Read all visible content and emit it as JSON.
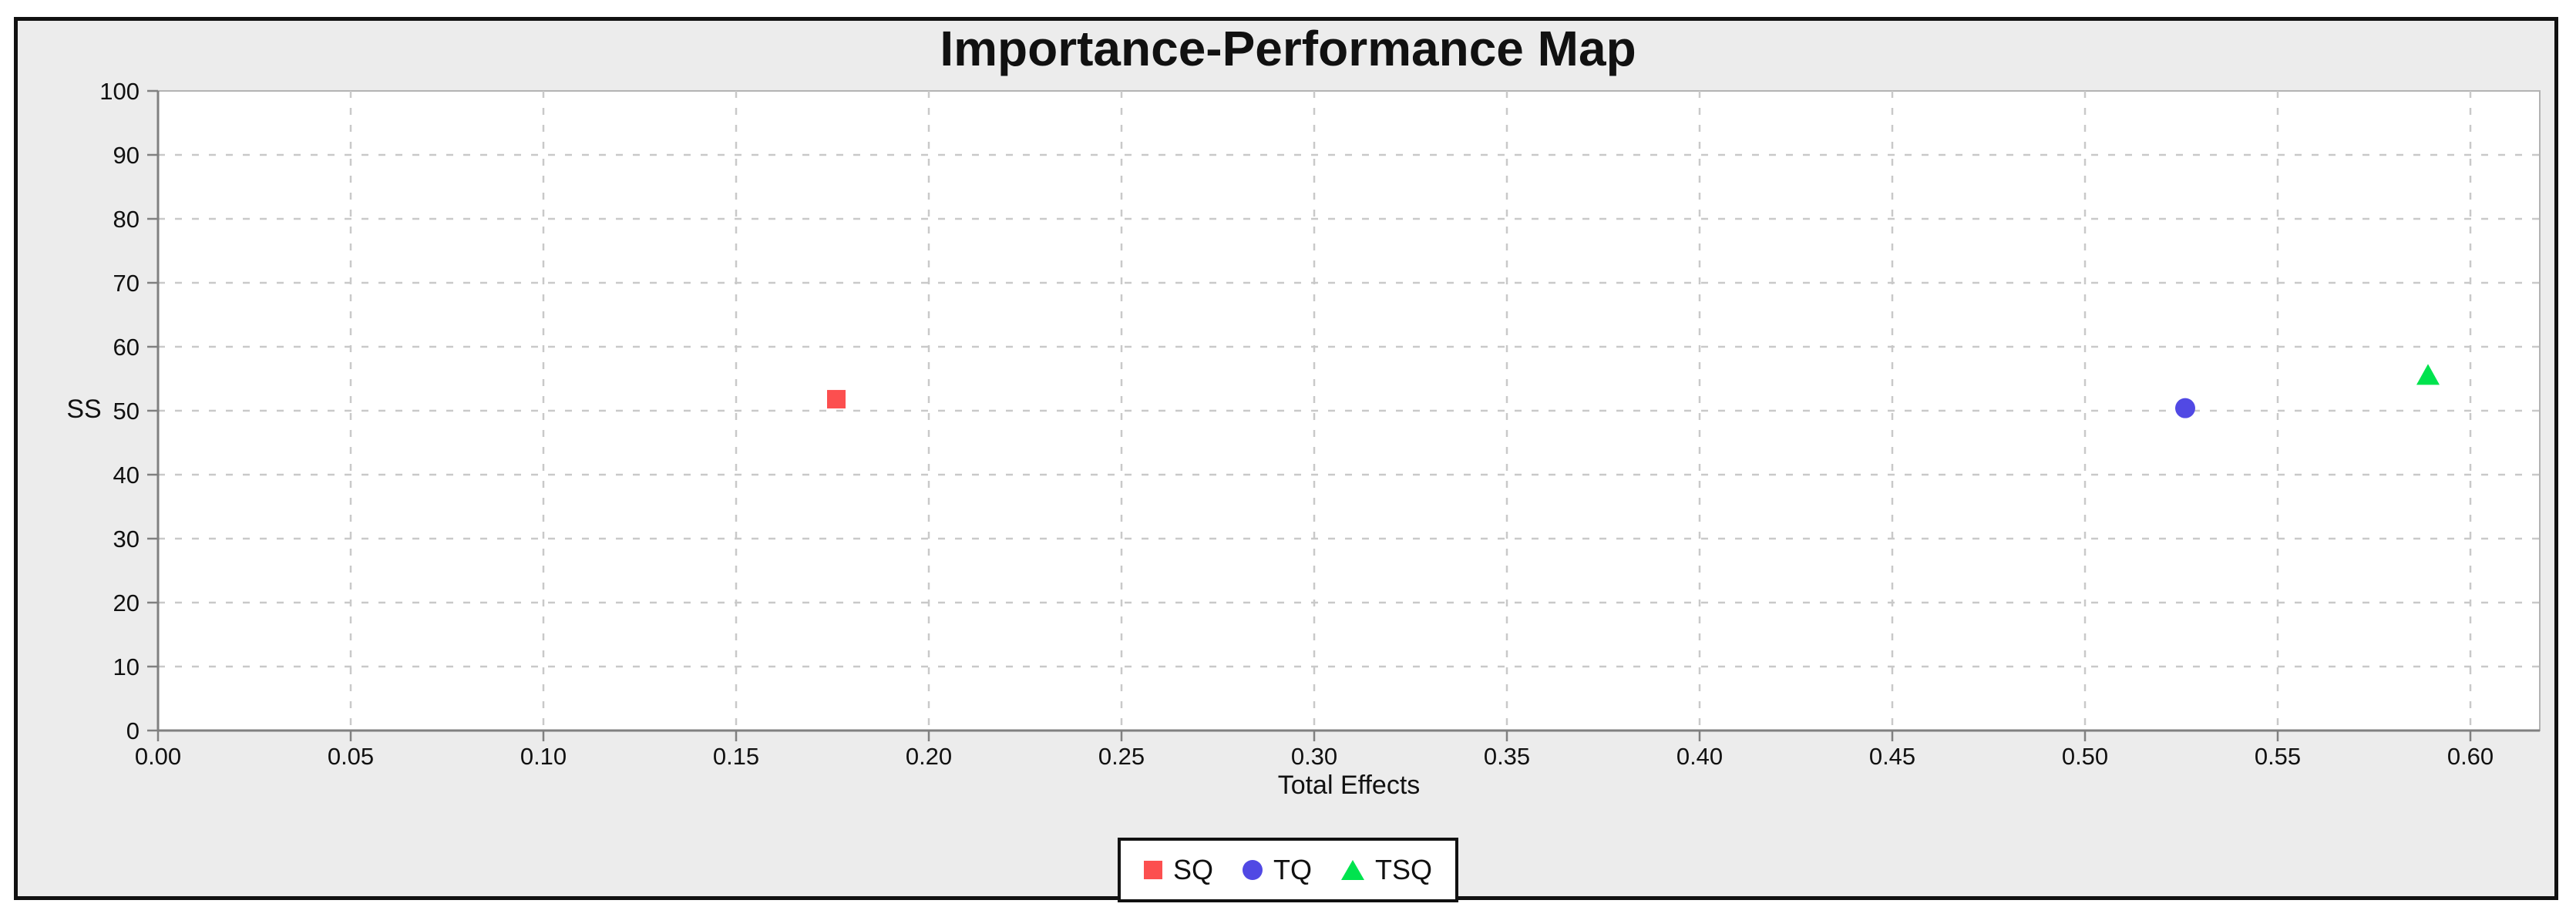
{
  "figure": {
    "title": "Importance-Performance Map"
  },
  "chart_data": {
    "type": "scatter",
    "title": "Importance-Performance Map",
    "xlabel": "Total Effects",
    "ylabel": "SS",
    "xlim": [
      0,
      0.618
    ],
    "ylim": [
      0,
      100
    ],
    "grid": true,
    "legend_position": "bottom-center",
    "xticks": [
      0.0,
      0.05,
      0.1,
      0.15,
      0.2,
      0.25,
      0.3,
      0.35,
      0.4,
      0.45,
      0.5,
      0.55,
      0.6
    ],
    "xtick_labels": [
      "0.00",
      "0.05",
      "0.10",
      "0.15",
      "0.20",
      "0.25",
      "0.30",
      "0.35",
      "0.40",
      "0.45",
      "0.50",
      "0.55",
      "0.60"
    ],
    "yticks": [
      0,
      10,
      20,
      30,
      40,
      50,
      60,
      70,
      80,
      90,
      100
    ],
    "ytick_labels": [
      "0",
      "10",
      "20",
      "30",
      "40",
      "50",
      "60",
      "70",
      "80",
      "90",
      "100"
    ],
    "series": [
      {
        "name": "SQ",
        "marker": "square",
        "color": "#fc4f4f",
        "points": [
          {
            "x": 0.176,
            "y": 51.8
          }
        ]
      },
      {
        "name": "TQ",
        "marker": "circle",
        "color": "#5149e4",
        "points": [
          {
            "x": 0.526,
            "y": 50.4
          }
        ]
      },
      {
        "name": "TSQ",
        "marker": "triangle",
        "color": "#00e34e",
        "points": [
          {
            "x": 0.589,
            "y": 55.5
          }
        ]
      }
    ],
    "colors": {
      "figure_background": "#ececec",
      "plot_background": "#ffffff",
      "gridline": "#c9c9c9",
      "axis_line": "#808080",
      "plot_border": "#b3b3b3",
      "text": "#111111",
      "frame_border": "#111111"
    }
  }
}
